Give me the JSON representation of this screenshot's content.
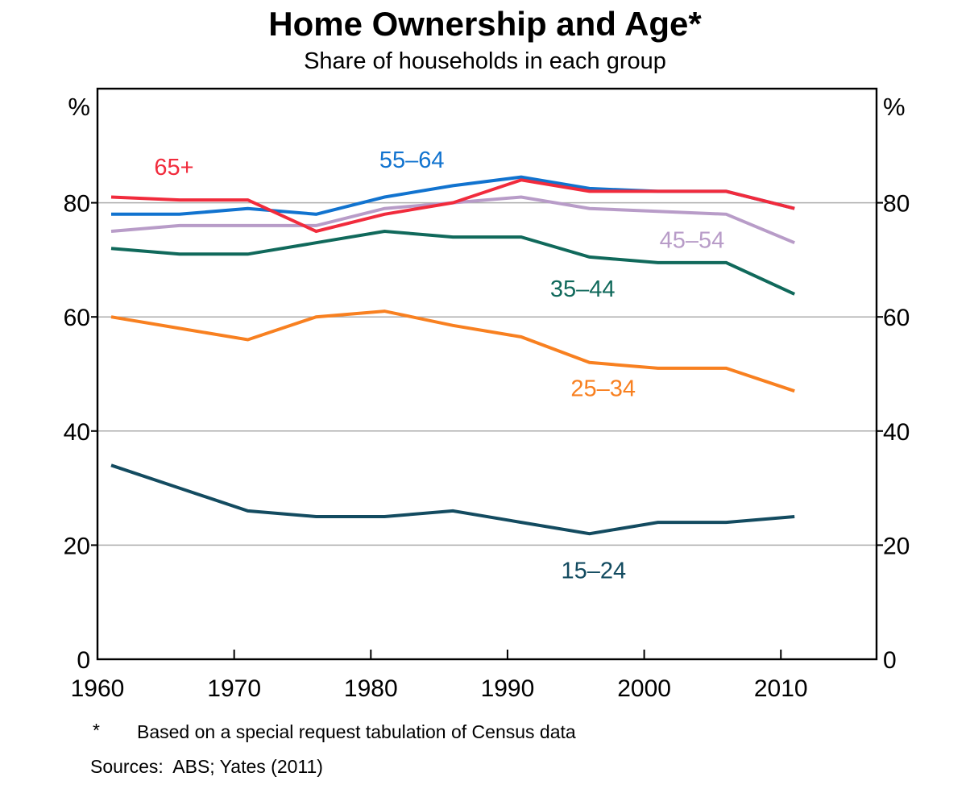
{
  "header": {
    "title": "Home Ownership and Age*",
    "subtitle": "Share of households in each group"
  },
  "footnotes": {
    "marker": "*",
    "note": "Based on a special request tabulation of Census data",
    "sources": "Sources:  ABS; Yates (2011)"
  },
  "style": {
    "axis_color": "#000000",
    "grid_color": "#ADADAD",
    "text_color": "#000000"
  },
  "chart_data": {
    "type": "line",
    "title": "Home Ownership and Age*",
    "subtitle": "Share of households in each group",
    "unit_label": "%",
    "xlim": [
      1960,
      2017
    ],
    "ylim": [
      0,
      100
    ],
    "yticks": [
      0,
      20,
      40,
      60,
      80
    ],
    "xtick_marks": [
      1970,
      1980,
      1990,
      2000,
      2010
    ],
    "xtick_labels": [
      1960,
      1970,
      1980,
      1990,
      2000,
      2010
    ],
    "grid": "horizontal",
    "legend_position": "inline-labels",
    "x": [
      1961,
      1966,
      1971,
      1976,
      1981,
      1986,
      1991,
      1996,
      2001,
      2006,
      2011
    ],
    "series": [
      {
        "name": "65+",
        "color": "#F12B3C",
        "values": [
          81,
          80.5,
          80.5,
          75,
          78,
          80,
          84,
          82,
          82,
          82,
          79
        ],
        "label": {
          "x": 1965.6,
          "y": 86.3
        }
      },
      {
        "name": "55–64",
        "color": "#1173CF",
        "values": [
          78,
          78,
          79,
          78,
          81,
          83,
          84.5,
          82.5,
          82,
          82,
          79
        ],
        "label": {
          "x": 1983.0,
          "y": 87.6
        }
      },
      {
        "name": "45–54",
        "color": "#B89CC8",
        "values": [
          75,
          76,
          76,
          76,
          79,
          80,
          81,
          79,
          78.5,
          78,
          73
        ],
        "label": {
          "x": 2003.5,
          "y": 73.5
        }
      },
      {
        "name": "35–44",
        "color": "#10695B",
        "values": [
          72,
          71,
          71,
          73,
          75,
          74,
          74,
          70.5,
          69.5,
          69.5,
          64
        ],
        "label": {
          "x": 1995.5,
          "y": 65.0
        }
      },
      {
        "name": "25–34",
        "color": "#F88020",
        "values": [
          60,
          58,
          56,
          60,
          61,
          58.5,
          56.5,
          52,
          51,
          51,
          47
        ],
        "label": {
          "x": 1997.0,
          "y": 47.5
        }
      },
      {
        "name": "15–24",
        "color": "#134B60",
        "values": [
          34,
          30,
          26,
          25,
          25,
          26,
          24,
          22,
          24,
          24,
          25
        ],
        "label": {
          "x": 1996.3,
          "y": 15.6
        }
      }
    ]
  }
}
